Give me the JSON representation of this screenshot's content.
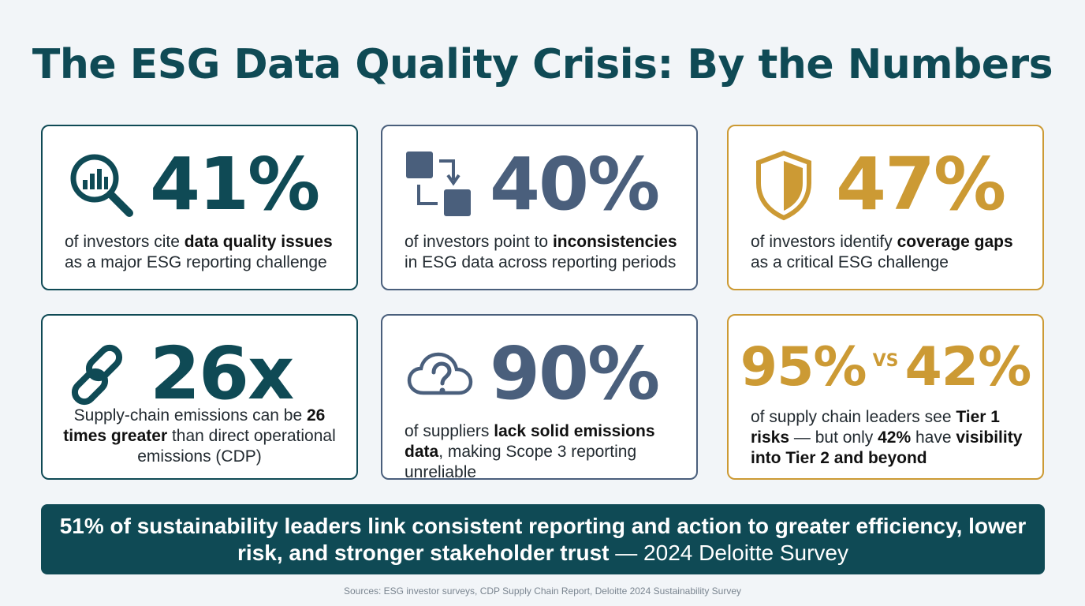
{
  "title": "The ESG Data Quality Crisis: By the Numbers",
  "cards": [
    {
      "stat": "41%",
      "icon": "magnifier-chart-icon",
      "text_pre": "of investors cite ",
      "text_bold": "data quality issues",
      "text_post": " as a major ESG reporting challenge"
    },
    {
      "stat": "40%",
      "icon": "swap-squares-icon",
      "text_pre": "of investors point to ",
      "text_bold": "inconsistencies",
      "text_post": " in ESG data across reporting periods"
    },
    {
      "stat": "47%",
      "icon": "shield-icon",
      "text_pre": "of investors identify ",
      "text_bold": "coverage gaps",
      "text_post": " as a critical ESG challenge"
    },
    {
      "stat": "26x",
      "icon": "chain-link-icon",
      "text_pre": "Supply-chain emissions can be ",
      "text_bold": "26 times greater",
      "text_post": " than direct operational emissions (CDP)"
    },
    {
      "stat": "90%",
      "icon": "cloud-question-icon",
      "text_pre": "of suppliers ",
      "text_bold": "lack solid emissions data",
      "text_post": ", making Scope 3 reporting unreliable"
    },
    {
      "stat_a": "95%",
      "vs": "VS",
      "stat_b": "42%",
      "text_pre": "of supply chain leaders see ",
      "text_bold": "Tier 1 risks",
      "text_mid": " — but only ",
      "text_bold2": "42%",
      "text_mid2": " have ",
      "text_bold3": "visibility into Tier 2 and beyond"
    }
  ],
  "banner": {
    "bold": "51% of sustainability leaders link consistent reporting and action to greater efficiency, lower risk, and stronger stakeholder trust",
    "attribution": " — 2024 Deloitte Survey"
  },
  "sources": "Sources: ESG investor surveys, CDP Supply Chain Report, Deloitte 2024 Sustainability Survey",
  "colors": {
    "teal": "#0f4a55",
    "slate": "#4a5f7c",
    "gold": "#cc9a34",
    "background": "#f2f5f8"
  }
}
